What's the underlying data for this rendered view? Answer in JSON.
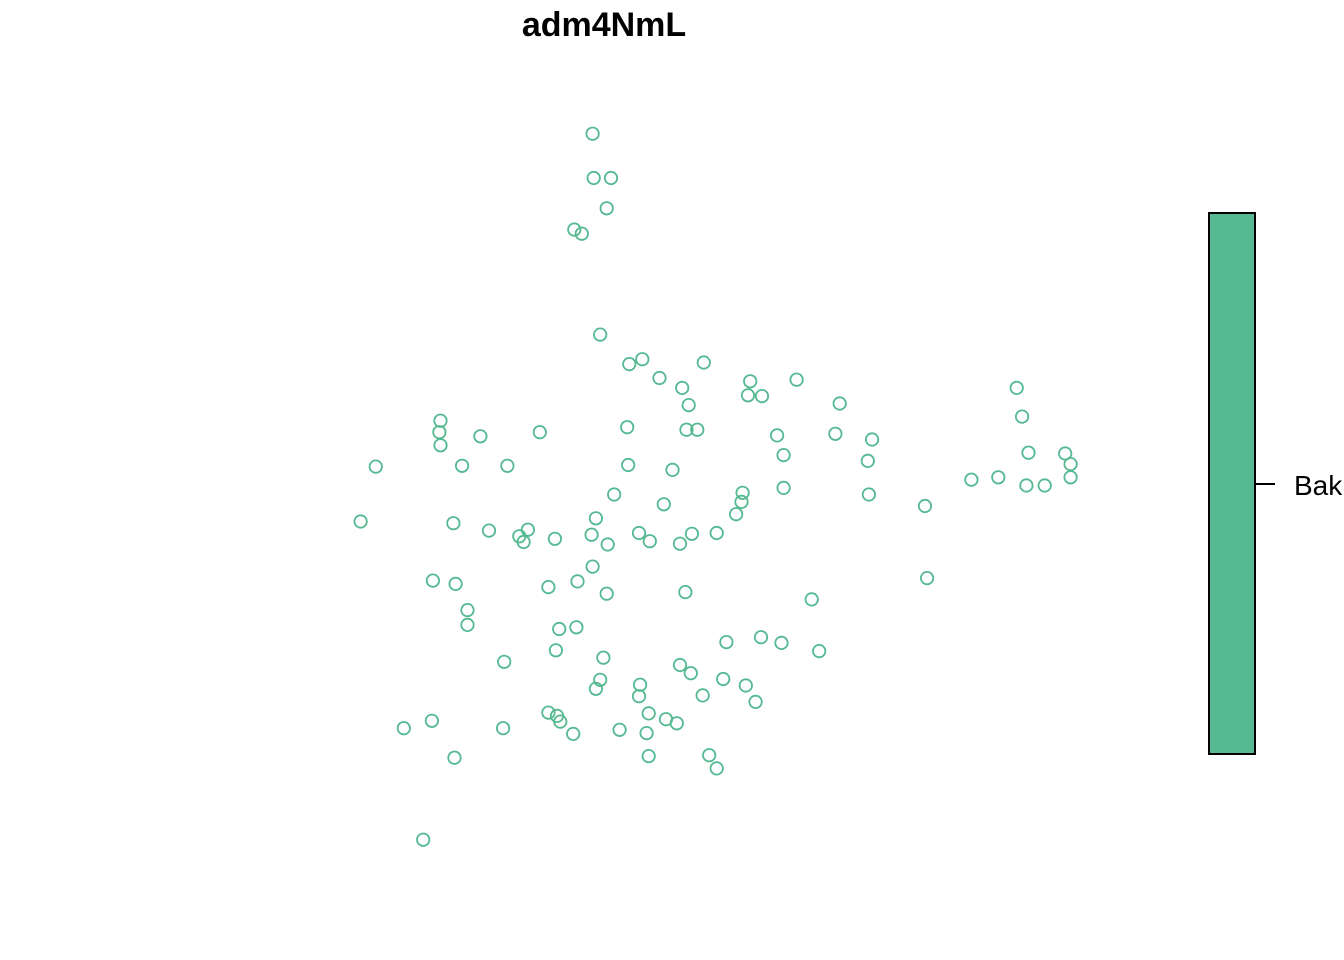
{
  "chart_data": {
    "type": "scatter",
    "title": "adm4NmL",
    "xlabel": "",
    "ylabel": "",
    "axes_visible": false,
    "grid": false,
    "marker": "open-circle",
    "legend": {
      "placement": "right",
      "style": "color-bar",
      "labels": [
        "Bak"
      ],
      "colors": [
        "#55b992"
      ]
    },
    "series": [
      {
        "color": "#55b992",
        "points": [
          [
            0.489,
            0.926
          ],
          [
            0.49,
            0.872
          ],
          [
            0.506,
            0.872
          ],
          [
            0.502,
            0.835
          ],
          [
            0.472,
            0.809
          ],
          [
            0.479,
            0.804
          ],
          [
            0.496,
            0.681
          ],
          [
            0.535,
            0.651
          ],
          [
            0.523,
            0.645
          ],
          [
            0.592,
            0.647
          ],
          [
            0.551,
            0.628
          ],
          [
            0.635,
            0.624
          ],
          [
            0.678,
            0.626
          ],
          [
            0.572,
            0.616
          ],
          [
            0.633,
            0.607
          ],
          [
            0.646,
            0.606
          ],
          [
            0.578,
            0.595
          ],
          [
            0.718,
            0.597
          ],
          [
            0.882,
            0.616
          ],
          [
            0.887,
            0.581
          ],
          [
            0.348,
            0.576
          ],
          [
            0.347,
            0.562
          ],
          [
            0.348,
            0.546
          ],
          [
            0.385,
            0.557
          ],
          [
            0.44,
            0.562
          ],
          [
            0.521,
            0.568
          ],
          [
            0.576,
            0.565
          ],
          [
            0.586,
            0.565
          ],
          [
            0.66,
            0.558
          ],
          [
            0.714,
            0.56
          ],
          [
            0.748,
            0.553
          ],
          [
            0.893,
            0.537
          ],
          [
            0.927,
            0.536
          ],
          [
            0.932,
            0.523
          ],
          [
            0.288,
            0.52
          ],
          [
            0.368,
            0.521
          ],
          [
            0.41,
            0.521
          ],
          [
            0.522,
            0.522
          ],
          [
            0.563,
            0.516
          ],
          [
            0.666,
            0.534
          ],
          [
            0.744,
            0.527
          ],
          [
            0.932,
            0.507
          ],
          [
            0.84,
            0.504
          ],
          [
            0.865,
            0.507
          ],
          [
            0.891,
            0.497
          ],
          [
            0.908,
            0.497
          ],
          [
            0.509,
            0.486
          ],
          [
            0.555,
            0.474
          ],
          [
            0.628,
            0.488
          ],
          [
            0.627,
            0.477
          ],
          [
            0.666,
            0.494
          ],
          [
            0.745,
            0.486
          ],
          [
            0.797,
            0.472
          ],
          [
            0.622,
            0.462
          ],
          [
            0.274,
            0.453
          ],
          [
            0.36,
            0.451
          ],
          [
            0.393,
            0.442
          ],
          [
            0.429,
            0.443
          ],
          [
            0.421,
            0.435
          ],
          [
            0.425,
            0.428
          ],
          [
            0.454,
            0.432
          ],
          [
            0.492,
            0.457
          ],
          [
            0.488,
            0.437
          ],
          [
            0.503,
            0.425
          ],
          [
            0.532,
            0.439
          ],
          [
            0.542,
            0.429
          ],
          [
            0.57,
            0.426
          ],
          [
            0.581,
            0.438
          ],
          [
            0.604,
            0.439
          ],
          [
            0.489,
            0.398
          ],
          [
            0.475,
            0.38
          ],
          [
            0.502,
            0.365
          ],
          [
            0.448,
            0.373
          ],
          [
            0.341,
            0.381
          ],
          [
            0.362,
            0.377
          ],
          [
            0.575,
            0.367
          ],
          [
            0.692,
            0.358
          ],
          [
            0.799,
            0.384
          ],
          [
            0.373,
            0.345
          ],
          [
            0.373,
            0.327
          ],
          [
            0.458,
            0.322
          ],
          [
            0.474,
            0.324
          ],
          [
            0.613,
            0.306
          ],
          [
            0.645,
            0.312
          ],
          [
            0.664,
            0.305
          ],
          [
            0.699,
            0.295
          ],
          [
            0.455,
            0.296
          ],
          [
            0.499,
            0.287
          ],
          [
            0.407,
            0.282
          ],
          [
            0.57,
            0.278
          ],
          [
            0.58,
            0.268
          ],
          [
            0.61,
            0.261
          ],
          [
            0.631,
            0.253
          ],
          [
            0.496,
            0.26
          ],
          [
            0.492,
            0.249
          ],
          [
            0.533,
            0.254
          ],
          [
            0.532,
            0.24
          ],
          [
            0.591,
            0.241
          ],
          [
            0.64,
            0.233
          ],
          [
            0.541,
            0.219
          ],
          [
            0.557,
            0.212
          ],
          [
            0.567,
            0.207
          ],
          [
            0.448,
            0.22
          ],
          [
            0.456,
            0.216
          ],
          [
            0.459,
            0.209
          ],
          [
            0.471,
            0.194
          ],
          [
            0.514,
            0.199
          ],
          [
            0.539,
            0.195
          ],
          [
            0.314,
            0.201
          ],
          [
            0.34,
            0.21
          ],
          [
            0.406,
            0.201
          ],
          [
            0.361,
            0.165
          ],
          [
            0.541,
            0.167
          ],
          [
            0.597,
            0.168
          ],
          [
            0.604,
            0.152
          ],
          [
            0.332,
            0.065
          ]
        ]
      }
    ]
  }
}
